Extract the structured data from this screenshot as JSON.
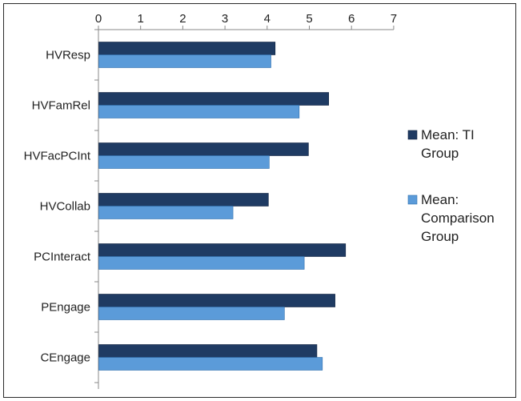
{
  "chart_data": {
    "type": "bar",
    "orientation": "horizontal",
    "categories": [
      "HVResp",
      "HVFamRel",
      "HVFacPCInt",
      "HVCollab",
      "PCInteract",
      "PEngage",
      "CEngage"
    ],
    "series": [
      {
        "name": "Mean: TI Group",
        "color": "#1f3b63",
        "values": [
          4.18,
          5.45,
          4.97,
          4.02,
          5.85,
          5.6,
          5.17
        ]
      },
      {
        "name": "Mean: Comparison Group",
        "color": "#5b9bd9",
        "values": [
          4.08,
          4.75,
          4.04,
          3.18,
          4.87,
          4.4,
          5.3
        ]
      }
    ],
    "xlim": [
      0,
      7
    ],
    "x_ticks": [
      "0",
      "1",
      "2",
      "3",
      "4",
      "5",
      "6",
      "7"
    ],
    "x_axis_position": "top",
    "grid": false,
    "legend_position": "right",
    "legend": [
      {
        "lines": [
          "Mean: TI",
          "Group"
        ]
      },
      {
        "lines": [
          "Mean:",
          "Comparison",
          "Group"
        ]
      }
    ]
  }
}
